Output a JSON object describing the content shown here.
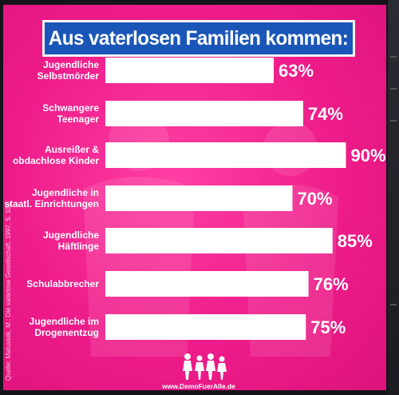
{
  "poster": {
    "title": "Aus vaterlosen Familien kommen:",
    "source": "Quelle: Matussek, M.: Die vaterlose Gesellschaft, 1997, S. 101",
    "url": "www.DemoFuerAlle.de",
    "colors": {
      "background": "#ee1c8a",
      "title_box": "#1a56b8",
      "bars": "#ffffff"
    }
  },
  "chart_data": {
    "type": "bar",
    "orientation": "horizontal",
    "categories": [
      [
        "Jugendliche",
        "Selbstmörder"
      ],
      [
        "Schwangere",
        "Teenager"
      ],
      [
        "Ausreißer &",
        "obdachlose Kinder"
      ],
      [
        "Jugendliche in",
        "staatl. Einrichtungen"
      ],
      [
        "Jugendliche",
        "Häftlinge"
      ],
      [
        "Schulabbrecher"
      ],
      [
        "Jugendliche im",
        "Drogenentzug"
      ]
    ],
    "values": [
      63,
      74,
      90,
      70,
      85,
      76,
      75
    ],
    "value_labels": [
      "63%",
      "74%",
      "90%",
      "70%",
      "85%",
      "76%",
      "75%"
    ],
    "unit": "%",
    "xlim": [
      0,
      100
    ],
    "grid": false,
    "legend": "none"
  }
}
